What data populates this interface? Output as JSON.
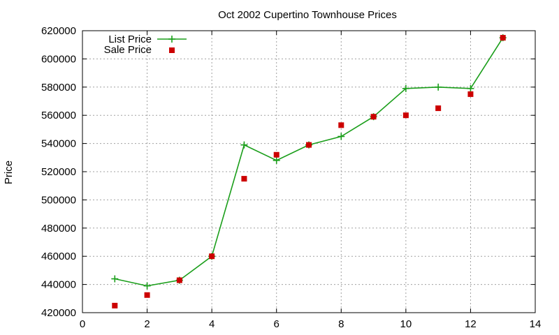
{
  "chart_data": {
    "type": "line",
    "title": "Oct 2002 Cupertino Townhouse Prices",
    "xlabel": "",
    "ylabel": "Price",
    "xlim": [
      0,
      14
    ],
    "ylim": [
      420000,
      620000
    ],
    "x_ticks": [
      0,
      2,
      4,
      6,
      8,
      10,
      12,
      14
    ],
    "y_ticks": [
      420000,
      440000,
      460000,
      480000,
      500000,
      520000,
      540000,
      560000,
      580000,
      600000,
      620000
    ],
    "grid": true,
    "legend_position": "top-left",
    "series": [
      {
        "name": "List Price",
        "style": "line+cross",
        "color": "#1a9e1a",
        "x": [
          1,
          2,
          3,
          4,
          5,
          6,
          7,
          8,
          9,
          10,
          11,
          12,
          13
        ],
        "y": [
          444000,
          439000,
          443000,
          460000,
          539000,
          528000,
          539000,
          545000,
          559000,
          579000,
          580000,
          579000,
          615000
        ]
      },
      {
        "name": "Sale Price",
        "style": "square",
        "color": "#cc0000",
        "x": [
          1,
          2,
          3,
          4,
          5,
          6,
          7,
          8,
          9,
          10,
          11,
          12,
          13
        ],
        "y": [
          425000,
          432500,
          443000,
          460000,
          515000,
          532000,
          539000,
          553000,
          559000,
          560000,
          565000,
          575000,
          615000
        ]
      }
    ]
  }
}
